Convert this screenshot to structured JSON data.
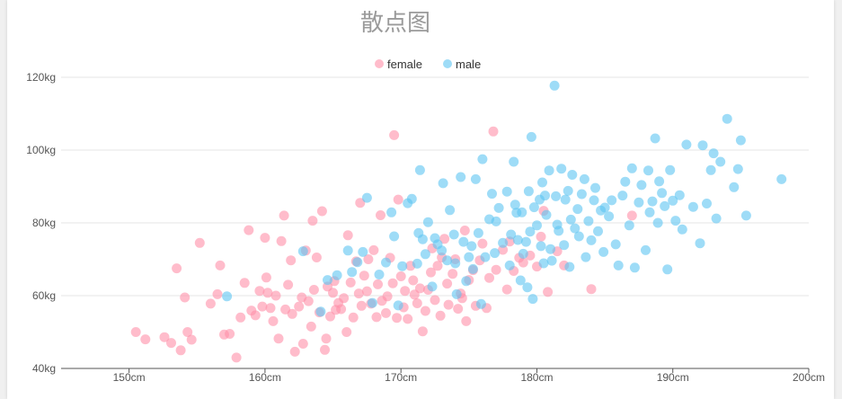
{
  "chart_data": {
    "type": "scatter",
    "title": "散点图",
    "xlim": [
      145,
      200
    ],
    "ylim": [
      40,
      125
    ],
    "x_ticks": [
      "150cm",
      "160cm",
      "170cm",
      "180cm",
      "190cm",
      "200cm"
    ],
    "y_ticks": [
      "40kg",
      "60kg",
      "80kg",
      "100kg",
      "120kg"
    ],
    "legend_position": "top-center",
    "grid": "horizontal",
    "series": [
      {
        "name": "female",
        "color": "#ff8fa8",
        "points": [
          [
            150.5,
            50
          ],
          [
            151.2,
            48
          ],
          [
            152.6,
            48.6
          ],
          [
            153.1,
            47
          ],
          [
            153.5,
            67.5
          ],
          [
            153.8,
            45
          ],
          [
            154.1,
            59.5
          ],
          [
            154.3,
            50
          ],
          [
            154.6,
            47.9
          ],
          [
            155.2,
            74.5
          ],
          [
            156,
            57.8
          ],
          [
            156.5,
            60.4
          ],
          [
            156.7,
            68.3
          ],
          [
            157,
            49.3
          ],
          [
            157.4,
            49.5
          ],
          [
            157.9,
            43
          ],
          [
            158.2,
            54
          ],
          [
            158.5,
            63.5
          ],
          [
            158.8,
            78
          ],
          [
            159,
            55.9
          ],
          [
            159.3,
            54.6
          ],
          [
            159.6,
            61.3
          ],
          [
            159.8,
            57
          ],
          [
            160,
            75.9
          ],
          [
            160.1,
            65
          ],
          [
            160.2,
            60.8
          ],
          [
            160.4,
            56.6
          ],
          [
            160.6,
            53
          ],
          [
            160.8,
            60
          ],
          [
            161,
            48.2
          ],
          [
            161.2,
            75
          ],
          [
            161.4,
            82
          ],
          [
            161.5,
            56.2
          ],
          [
            161.7,
            63
          ],
          [
            161.9,
            69.7
          ],
          [
            162,
            55
          ],
          [
            162.2,
            44.6
          ],
          [
            162.5,
            57
          ],
          [
            162.7,
            59.5
          ],
          [
            162.8,
            46.8
          ],
          [
            163,
            72.4
          ],
          [
            163.2,
            58.5
          ],
          [
            163.4,
            51.5
          ],
          [
            163.5,
            80.6
          ],
          [
            163.6,
            61.6
          ],
          [
            163.8,
            70.5
          ],
          [
            164,
            55.4
          ],
          [
            164.2,
            83.2
          ],
          [
            164.4,
            45.1
          ],
          [
            164.5,
            48.2
          ],
          [
            164.6,
            62.5
          ],
          [
            164.8,
            54.3
          ],
          [
            165,
            60.8
          ],
          [
            165.1,
            64
          ],
          [
            165.2,
            56.1
          ],
          [
            165.4,
            58
          ],
          [
            165.6,
            56.3
          ],
          [
            165.8,
            59.3
          ],
          [
            166,
            50
          ],
          [
            166.1,
            76.6
          ],
          [
            166.3,
            63.6
          ],
          [
            166.5,
            54
          ],
          [
            166.7,
            69.4
          ],
          [
            166.9,
            60.6
          ],
          [
            167,
            85.5
          ],
          [
            167.1,
            57.2
          ],
          [
            167.3,
            65.5
          ],
          [
            167.5,
            61.2
          ],
          [
            167.6,
            70
          ],
          [
            167.8,
            57.8
          ],
          [
            168,
            72.5
          ],
          [
            168.2,
            54.1
          ],
          [
            168.3,
            63.1
          ],
          [
            168.5,
            82.1
          ],
          [
            168.6,
            58.6
          ],
          [
            168.9,
            55.2
          ],
          [
            169,
            59.8
          ],
          [
            169.2,
            70.4
          ],
          [
            169.4,
            63.4
          ],
          [
            169.5,
            104.1
          ],
          [
            169.7,
            53.9
          ],
          [
            169.8,
            86.4
          ],
          [
            170,
            65.3
          ],
          [
            170.2,
            56.8
          ],
          [
            170.3,
            61.3
          ],
          [
            170.5,
            53.6
          ],
          [
            170.7,
            68.2
          ],
          [
            170.9,
            64.2
          ],
          [
            171,
            60.3
          ],
          [
            171.2,
            57.9
          ],
          [
            171.4,
            62
          ],
          [
            171.6,
            50.2
          ],
          [
            171.8,
            55.8
          ],
          [
            172,
            61.6
          ],
          [
            172.2,
            66.4
          ],
          [
            172.3,
            73
          ],
          [
            172.5,
            58.8
          ],
          [
            172.7,
            68.2
          ],
          [
            172.9,
            54.5
          ],
          [
            173,
            70.5
          ],
          [
            173.2,
            75.6
          ],
          [
            173.4,
            63.3
          ],
          [
            173.5,
            57.5
          ],
          [
            173.8,
            66
          ],
          [
            174,
            70
          ],
          [
            174.2,
            56.4
          ],
          [
            174.4,
            60.6
          ],
          [
            174.5,
            59.3
          ],
          [
            174.7,
            77.9
          ],
          [
            174.8,
            53
          ],
          [
            175,
            64.3
          ],
          [
            175.3,
            67
          ],
          [
            175.5,
            57.2
          ],
          [
            175.8,
            69.7
          ],
          [
            176,
            74.3
          ],
          [
            176.3,
            56.6
          ],
          [
            176.5,
            64.9
          ],
          [
            176.8,
            105.1
          ],
          [
            177,
            67.1
          ],
          [
            177.5,
            72.6
          ],
          [
            177.8,
            61.7
          ],
          [
            178,
            74.9
          ],
          [
            178.3,
            66.8
          ],
          [
            178.7,
            70.4
          ],
          [
            179,
            69.1
          ],
          [
            179.5,
            71
          ],
          [
            180,
            68
          ],
          [
            180.3,
            76.2
          ],
          [
            180.5,
            83.3
          ],
          [
            180.8,
            61
          ],
          [
            181.5,
            72.2
          ],
          [
            182,
            68.3
          ],
          [
            184,
            61.8
          ],
          [
            187,
            82
          ]
        ]
      },
      {
        "name": "male",
        "color": "#5ec4f2",
        "points": [
          [
            157.2,
            59.8
          ],
          [
            162.8,
            72.2
          ],
          [
            164.1,
            55.6
          ],
          [
            164.6,
            64.3
          ],
          [
            165.3,
            65.6
          ],
          [
            166.1,
            72.4
          ],
          [
            166.4,
            66.5
          ],
          [
            166.8,
            69.2
          ],
          [
            167.2,
            72
          ],
          [
            167.5,
            86.9
          ],
          [
            167.9,
            58
          ],
          [
            168.4,
            65.8
          ],
          [
            168.9,
            69.1
          ],
          [
            169.3,
            82.9
          ],
          [
            169.5,
            76.3
          ],
          [
            169.8,
            57.3
          ],
          [
            170.1,
            68.1
          ],
          [
            170.5,
            85.4
          ],
          [
            170.8,
            86.6
          ],
          [
            171.2,
            68.8
          ],
          [
            171.3,
            77.2
          ],
          [
            171.4,
            94.5
          ],
          [
            171.6,
            75.5
          ],
          [
            171.8,
            71.4
          ],
          [
            172,
            80.2
          ],
          [
            172.3,
            62.5
          ],
          [
            172.5,
            75.8
          ],
          [
            172.7,
            74.1
          ],
          [
            173,
            72.4
          ],
          [
            173.1,
            90.9
          ],
          [
            173.4,
            69.7
          ],
          [
            173.6,
            83.5
          ],
          [
            173.9,
            76.8
          ],
          [
            174,
            68.9
          ],
          [
            174.1,
            60.4
          ],
          [
            174.4,
            92.6
          ],
          [
            174.6,
            74.8
          ],
          [
            174.8,
            64
          ],
          [
            175,
            70.6
          ],
          [
            175.2,
            73.6
          ],
          [
            175.3,
            67.3
          ],
          [
            175.5,
            92
          ],
          [
            175.7,
            77.2
          ],
          [
            175.9,
            57.7
          ],
          [
            176,
            97.5
          ],
          [
            176.2,
            70.6
          ],
          [
            176.5,
            81
          ],
          [
            176.7,
            88
          ],
          [
            176.9,
            71.7
          ],
          [
            177,
            80.4
          ],
          [
            177.2,
            84.1
          ],
          [
            177.5,
            74.5
          ],
          [
            177.8,
            88.6
          ],
          [
            178,
            68.3
          ],
          [
            178.1,
            76.8
          ],
          [
            178.3,
            96.8
          ],
          [
            178.4,
            85
          ],
          [
            178.5,
            82.8
          ],
          [
            178.6,
            75.3
          ],
          [
            178.8,
            64.2
          ],
          [
            178.9,
            82.9
          ],
          [
            179,
            71.5
          ],
          [
            179.2,
            74.8
          ],
          [
            179.3,
            62.3
          ],
          [
            179.4,
            88.7
          ],
          [
            179.5,
            77.6
          ],
          [
            179.6,
            103.6
          ],
          [
            179.7,
            59.1
          ],
          [
            179.8,
            84.3
          ],
          [
            180,
            79.3
          ],
          [
            180.2,
            86.4
          ],
          [
            180.3,
            73.6
          ],
          [
            180.4,
            91.1
          ],
          [
            180.5,
            68.9
          ],
          [
            180.6,
            87.5
          ],
          [
            180.7,
            82.2
          ],
          [
            180.9,
            94.4
          ],
          [
            181,
            72.8
          ],
          [
            181.1,
            69.6
          ],
          [
            181.3,
            117.7
          ],
          [
            181.4,
            87.3
          ],
          [
            181.5,
            79.5
          ],
          [
            181.6,
            77.8
          ],
          [
            181.8,
            94.9
          ],
          [
            182,
            73.9
          ],
          [
            182.1,
            86.4
          ],
          [
            182.3,
            88.8
          ],
          [
            182.4,
            67.9
          ],
          [
            182.5,
            80.9
          ],
          [
            182.6,
            93.2
          ],
          [
            182.8,
            78.5
          ],
          [
            183,
            83.8
          ],
          [
            183.1,
            76.3
          ],
          [
            183.3,
            87.9
          ],
          [
            183.5,
            92
          ],
          [
            183.6,
            70.6
          ],
          [
            183.8,
            80.5
          ],
          [
            184,
            75.2
          ],
          [
            184.2,
            86.2
          ],
          [
            184.3,
            89.6
          ],
          [
            184.5,
            77.7
          ],
          [
            184.7,
            83.4
          ],
          [
            184.9,
            72
          ],
          [
            185,
            84.2
          ],
          [
            185.3,
            81.8
          ],
          [
            185.5,
            86.2
          ],
          [
            185.8,
            74.1
          ],
          [
            186,
            68.3
          ],
          [
            186.3,
            87.5
          ],
          [
            186.5,
            91.3
          ],
          [
            186.8,
            79.3
          ],
          [
            187,
            95
          ],
          [
            187.2,
            67.7
          ],
          [
            187.5,
            85.6
          ],
          [
            187.7,
            90.4
          ],
          [
            188,
            72.5
          ],
          [
            188.2,
            94.4
          ],
          [
            188.3,
            82.9
          ],
          [
            188.5,
            85.9
          ],
          [
            188.7,
            103.2
          ],
          [
            188.9,
            80
          ],
          [
            189,
            91.4
          ],
          [
            189.2,
            88.2
          ],
          [
            189.4,
            84.6
          ],
          [
            189.6,
            67.2
          ],
          [
            189.8,
            94.5
          ],
          [
            190,
            86.1
          ],
          [
            190.2,
            80.6
          ],
          [
            190.5,
            87.6
          ],
          [
            190.7,
            78.2
          ],
          [
            191,
            101.5
          ],
          [
            191.5,
            84.4
          ],
          [
            192,
            74.4
          ],
          [
            192.2,
            101.3
          ],
          [
            192.5,
            85.3
          ],
          [
            192.8,
            94.5
          ],
          [
            193,
            99.1
          ],
          [
            193.2,
            81.2
          ],
          [
            193.5,
            96.8
          ],
          [
            194,
            108.6
          ],
          [
            194.5,
            89.8
          ],
          [
            194.8,
            94.8
          ],
          [
            195,
            102.7
          ],
          [
            195.4,
            82
          ],
          [
            198,
            92
          ]
        ]
      }
    ]
  }
}
